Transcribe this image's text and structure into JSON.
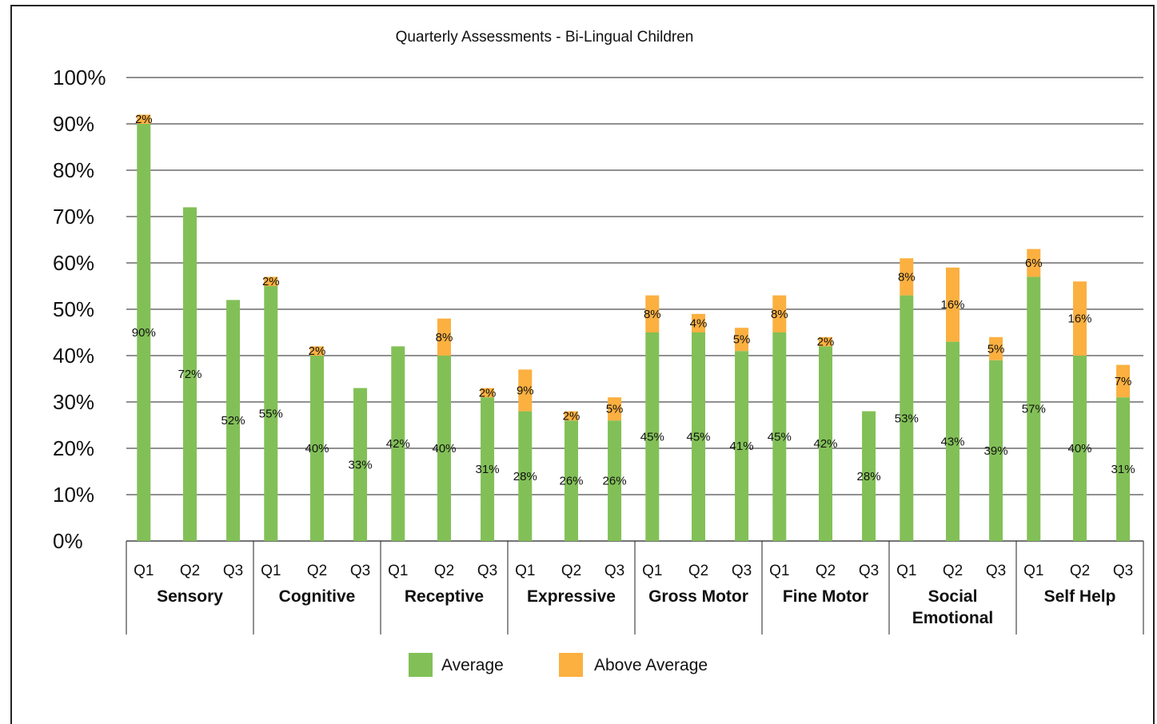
{
  "chart_data": {
    "type": "bar",
    "stacked": true,
    "title": "Quarterly Assessments - Bi-Lingual Children",
    "ylim": [
      0,
      100
    ],
    "yticks": [
      "0%",
      "10%",
      "20%",
      "30%",
      "40%",
      "50%",
      "60%",
      "70%",
      "80%",
      "90%",
      "100%"
    ],
    "grid": true,
    "legend_position": "bottom",
    "groups": [
      {
        "name": "Sensory",
        "labels": [
          "Sensory"
        ],
        "quarters": [
          "Q1",
          "Q2",
          "Q3"
        ]
      },
      {
        "name": "Cognitive",
        "labels": [
          "Cognitive"
        ],
        "quarters": [
          "Q1",
          "Q2",
          "Q3"
        ]
      },
      {
        "name": "Receptive",
        "labels": [
          "Receptive"
        ],
        "quarters": [
          "Q1",
          "Q2",
          "Q3"
        ]
      },
      {
        "name": "Expressive",
        "labels": [
          "Expressive"
        ],
        "quarters": [
          "Q1",
          "Q2",
          "Q3"
        ]
      },
      {
        "name": "Gross Motor",
        "labels": [
          "Gross Motor"
        ],
        "quarters": [
          "Q1",
          "Q2",
          "Q3"
        ]
      },
      {
        "name": "Fine Motor",
        "labels": [
          "Fine Motor"
        ],
        "quarters": [
          "Q1",
          "Q2",
          "Q3"
        ]
      },
      {
        "name": "Social Emotional",
        "labels": [
          "Social",
          "Emotional"
        ],
        "quarters": [
          "Q1",
          "Q2",
          "Q3"
        ]
      },
      {
        "name": "Self Help",
        "labels": [
          "Self Help"
        ],
        "quarters": [
          "Q1",
          "Q2",
          "Q3"
        ]
      }
    ],
    "series": [
      {
        "name": "Average",
        "color": "#82c057",
        "values": [
          90,
          72,
          52,
          55,
          40,
          33,
          42,
          40,
          31,
          28,
          26,
          26,
          45,
          45,
          41,
          45,
          42,
          28,
          53,
          43,
          39,
          57,
          40,
          31
        ],
        "labels": [
          "90%",
          "72%",
          "52%",
          "55%",
          "40%",
          "33%",
          "42%",
          "40%",
          "31%",
          "28%",
          "26%",
          "26%",
          "45%",
          "45%",
          "41%",
          "45%",
          "42%",
          "28%",
          "53%",
          "43%",
          "39%",
          "57%",
          "40%",
          "31%"
        ]
      },
      {
        "name": "Above Average",
        "color": "#fbb040",
        "values": [
          2,
          0,
          0,
          2,
          2,
          0,
          0,
          8,
          2,
          9,
          2,
          5,
          8,
          4,
          5,
          8,
          2,
          0,
          8,
          16,
          5,
          6,
          16,
          7
        ],
        "labels": [
          "2%",
          "",
          "",
          "2%",
          "2%",
          "",
          "",
          "8%",
          "2%",
          "9%",
          "2%",
          "5%",
          "8%",
          "4%",
          "5%",
          "8%",
          "2%",
          "",
          "8%",
          "16%",
          "5%",
          "6%",
          "16%",
          "7%"
        ]
      }
    ]
  }
}
